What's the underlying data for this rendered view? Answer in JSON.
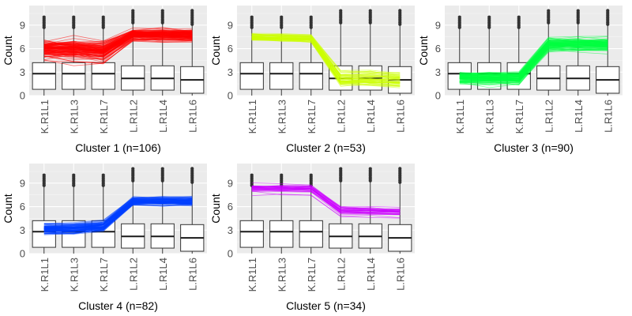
{
  "chart_data": {
    "type": "line",
    "layout": "faceted boxplots with overlaid cluster profile lines",
    "categories": [
      "K.R1L1",
      "K.R1L3",
      "K.R1L7",
      "L.R1L2",
      "L.R1L4",
      "L.R1L6"
    ],
    "ylabel": "Count",
    "ylim": [
      0,
      11.5
    ],
    "yticks": [
      0,
      3,
      6,
      9
    ],
    "grid": true,
    "boxplot": {
      "q1": [
        0.8,
        0.8,
        0.8,
        0.7,
        0.7,
        0.3
      ],
      "median": [
        2.8,
        2.8,
        2.8,
        2.2,
        2.2,
        2.0
      ],
      "q3": [
        4.2,
        4.2,
        4.2,
        3.8,
        3.8,
        3.7
      ],
      "whisker_low": [
        0,
        0,
        0,
        0,
        0,
        0
      ],
      "whisker_high": [
        8.6,
        8.6,
        8.6,
        9.2,
        9.2,
        9.0
      ],
      "outliers_from": [
        8.7,
        8.7,
        8.7,
        9.3,
        9.3,
        9.1
      ],
      "outliers_to": [
        10.2,
        10.2,
        10.2,
        11.0,
        11.0,
        11.0
      ]
    },
    "panels": [
      {
        "title": "Cluster 1 (n=106)",
        "color": "#ff0000",
        "n": 106,
        "mean": [
          6.0,
          5.9,
          5.7,
          7.8,
          7.8,
          7.7
        ],
        "spread": [
          1.2,
          1.2,
          1.2,
          0.7,
          0.7,
          0.7
        ]
      },
      {
        "title": "Cluster 2 (n=53)",
        "color": "#ccff00",
        "n": 53,
        "mean": [
          7.4,
          7.3,
          7.2,
          2.0,
          2.0,
          1.9
        ],
        "spread": [
          0.5,
          0.5,
          0.5,
          1.0,
          1.0,
          1.0
        ]
      },
      {
        "title": "Cluster 3 (n=90)",
        "color": "#00ff40",
        "n": 90,
        "mean": [
          2.3,
          2.3,
          2.3,
          6.6,
          6.6,
          6.6
        ],
        "spread": [
          0.8,
          0.8,
          0.8,
          0.8,
          0.8,
          0.8
        ]
      },
      {
        "title": "Cluster 4 (n=82)",
        "color": "#0040ff",
        "n": 82,
        "mean": [
          3.2,
          3.2,
          3.5,
          6.7,
          6.7,
          6.7
        ],
        "spread": [
          0.6,
          0.6,
          0.6,
          0.5,
          0.5,
          0.5
        ]
      },
      {
        "title": "Cluster 5 (n=34)",
        "color": "#cc00ff",
        "n": 34,
        "mean": [
          8.2,
          8.2,
          8.1,
          5.4,
          5.3,
          5.2
        ],
        "spread": [
          0.6,
          0.6,
          0.6,
          0.7,
          0.7,
          0.7
        ]
      }
    ]
  }
}
